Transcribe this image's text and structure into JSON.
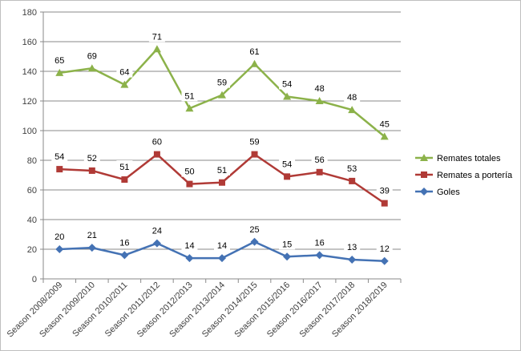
{
  "chart_data": {
    "type": "line",
    "categories": [
      "Season 2008/2009",
      "Season 2009/2010",
      "Season 2010/2011",
      "Season 2011/2012",
      "Season 2012/2013",
      "Season 2013/2014",
      "Season 2014/2015",
      "Season 2015/2016",
      "Season 2016/2017",
      "Season 2017/2018",
      "Season 2018/2019"
    ],
    "yticks": [
      0,
      20,
      40,
      60,
      80,
      100,
      120,
      140,
      160,
      180
    ],
    "ylim": [
      0,
      180
    ],
    "grid": true,
    "legend_position": "right",
    "series": [
      {
        "name": "Remates totales",
        "color": "#8cb24a",
        "marker": "triangle",
        "values": [
          139,
          142,
          131,
          155,
          115,
          124,
          145,
          123,
          120,
          114,
          96
        ],
        "labels": [
          "65",
          "69",
          "64",
          "71",
          "51",
          "59",
          "61",
          "54",
          "48",
          "48",
          "45"
        ]
      },
      {
        "name": "Remates a portería",
        "color": "#b03a36",
        "marker": "square",
        "values": [
          74,
          73,
          67,
          84,
          64,
          65,
          84,
          69,
          72,
          66,
          51
        ],
        "labels": [
          "54",
          "52",
          "51",
          "60",
          "50",
          "51",
          "59",
          "54",
          "56",
          "53",
          "39"
        ]
      },
      {
        "name": "Goles",
        "color": "#4472b4",
        "marker": "diamond",
        "values": [
          20,
          21,
          16,
          24,
          14,
          14,
          25,
          15,
          16,
          13,
          12
        ],
        "labels": [
          "20",
          "21",
          "16",
          "24",
          "14",
          "14",
          "25",
          "15",
          "16",
          "13",
          "12"
        ]
      }
    ]
  }
}
